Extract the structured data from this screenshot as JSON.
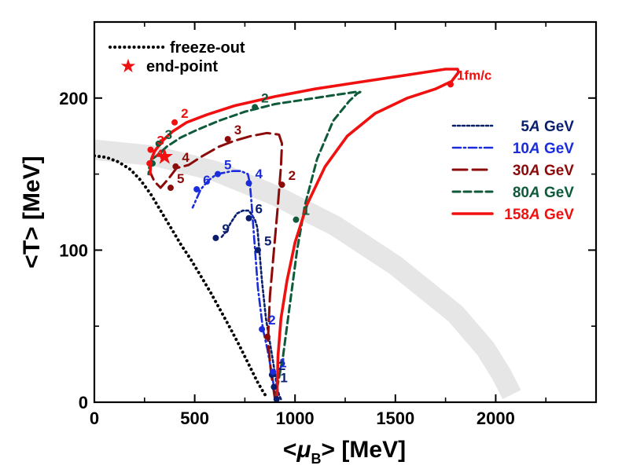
{
  "chart_data": {
    "type": "line",
    "title": "",
    "xlabel": "<μB> [MeV]",
    "xlabel_prefix": "<",
    "xlabel_symbol": "μ",
    "xlabel_sub": "B",
    "xlabel_suffix": "> [MeV]",
    "ylabel": "<T> [MeV]",
    "xlim": [
      0,
      2500
    ],
    "ylim": [
      0,
      250
    ],
    "x_ticks": [
      0,
      500,
      1000,
      1500,
      2000
    ],
    "x_tick_labels": [
      "0",
      "500",
      "1000",
      "1500",
      "2000"
    ],
    "y_ticks": [
      0,
      100,
      200
    ],
    "y_tick_labels": [
      "0",
      "100",
      "200"
    ],
    "grid": false,
    "legend_position": "right",
    "series": [
      {
        "name": "5A GeV",
        "label_num": "5",
        "label_unit": "A",
        "label_tail": " GeV",
        "color": "#0a1e6e",
        "style": "short-dot",
        "path": [
          [
            930,
            2
          ],
          [
            920,
            5
          ],
          [
            910,
            10
          ],
          [
            900,
            19
          ],
          [
            880,
            35
          ],
          [
            855,
            55
          ],
          [
            835,
            80
          ],
          [
            822,
            100
          ],
          [
            812,
            115
          ],
          [
            800,
            120
          ],
          [
            770,
            126
          ],
          [
            740,
            126
          ],
          [
            710,
            124
          ],
          [
            680,
            118
          ],
          [
            655,
            112
          ],
          [
            630,
            108
          ]
        ],
        "markers": [
          {
            "x": 908,
            "y": 2,
            "label": ""
          },
          {
            "x": 895,
            "y": 10,
            "label": "1"
          },
          {
            "x": 885,
            "y": 18,
            "label": "2"
          },
          {
            "x": 815,
            "y": 100,
            "label": "5"
          },
          {
            "x": 770,
            "y": 121,
            "label": "6"
          },
          {
            "x": 605,
            "y": 108,
            "label": "9"
          }
        ]
      },
      {
        "name": "10A GeV",
        "label_num": "10",
        "label_unit": "A",
        "label_tail": " GeV",
        "color": "#1a2cdc",
        "style": "dash-dot",
        "path": [
          [
            905,
            2
          ],
          [
            895,
            10
          ],
          [
            880,
            22
          ],
          [
            862,
            35
          ],
          [
            840,
            48
          ],
          [
            815,
            75
          ],
          [
            795,
            110
          ],
          [
            785,
            128
          ],
          [
            775,
            144
          ],
          [
            765,
            150
          ],
          [
            730,
            152
          ],
          [
            690,
            152
          ],
          [
            650,
            151
          ],
          [
            610,
            150
          ],
          [
            570,
            146
          ],
          [
            530,
            140
          ],
          [
            490,
            128
          ]
        ],
        "markers": [
          {
            "x": 890,
            "y": 20,
            "label": "1"
          },
          {
            "x": 835,
            "y": 48,
            "label": "2"
          },
          {
            "x": 770,
            "y": 144,
            "label": "4"
          },
          {
            "x": 615,
            "y": 150,
            "label": "5"
          },
          {
            "x": 510,
            "y": 140,
            "label": "6"
          }
        ]
      },
      {
        "name": "30A GeV",
        "label_num": "30",
        "label_unit": "A",
        "label_tail": " GeV",
        "color": "#8b0a0a",
        "style": "long-dash",
        "path": [
          [
            900,
            2
          ],
          [
            880,
            20
          ],
          [
            865,
            40
          ],
          [
            875,
            70
          ],
          [
            895,
            100
          ],
          [
            915,
            130
          ],
          [
            930,
            155
          ],
          [
            935,
            170
          ],
          [
            920,
            176
          ],
          [
            860,
            177
          ],
          [
            780,
            175
          ],
          [
            700,
            172
          ],
          [
            620,
            168
          ],
          [
            540,
            162
          ],
          [
            470,
            156
          ],
          [
            410,
            154
          ],
          [
            370,
            147
          ],
          [
            330,
            141
          ],
          [
            300,
            145
          ],
          [
            275,
            152
          ]
        ],
        "markers": [
          {
            "x": 862,
            "y": 43,
            "label": ""
          },
          {
            "x": 935,
            "y": 143,
            "label": "2"
          },
          {
            "x": 665,
            "y": 173,
            "label": "3"
          },
          {
            "x": 405,
            "y": 155,
            "label": "4"
          },
          {
            "x": 380,
            "y": 141,
            "label": "5"
          }
        ]
      },
      {
        "name": "80A GeV",
        "label_num": "80",
        "label_unit": "A",
        "label_tail": " GeV",
        "color": "#0e5a3a",
        "style": "dash",
        "path": [
          [
            900,
            2
          ],
          [
            940,
            30
          ],
          [
            980,
            70
          ],
          [
            1010,
            100
          ],
          [
            1050,
            130
          ],
          [
            1110,
            160
          ],
          [
            1190,
            185
          ],
          [
            1270,
            198
          ],
          [
            1310,
            203
          ],
          [
            1325,
            204
          ],
          [
            1300,
            204
          ],
          [
            1200,
            202
          ],
          [
            1050,
            199
          ],
          [
            900,
            196
          ],
          [
            750,
            191
          ],
          [
            620,
            185
          ],
          [
            510,
            179
          ],
          [
            430,
            174
          ],
          [
            360,
            168
          ],
          [
            320,
            163
          ],
          [
            290,
            160
          ],
          [
            275,
            156
          ],
          [
            270,
            150
          ]
        ],
        "markers": [
          {
            "x": 1005,
            "y": 120,
            "label": "1"
          },
          {
            "x": 800,
            "y": 194,
            "label": "2"
          },
          {
            "x": 320,
            "y": 170,
            "label": "3"
          },
          {
            "x": 290,
            "y": 157,
            "label": "4"
          }
        ]
      },
      {
        "name": "158A GeV",
        "label_num": "158",
        "label_unit": "A",
        "label_tail": " GeV",
        "color": "#f01010",
        "style": "solid",
        "path": [
          [
            910,
            2
          ],
          [
            915,
            30
          ],
          [
            930,
            55
          ],
          [
            960,
            80
          ],
          [
            1000,
            105
          ],
          [
            1060,
            130
          ],
          [
            1150,
            155
          ],
          [
            1260,
            175
          ],
          [
            1400,
            190
          ],
          [
            1560,
            200
          ],
          [
            1700,
            206
          ],
          [
            1780,
            211
          ],
          [
            1815,
            217
          ],
          [
            1810,
            219
          ],
          [
            1750,
            219
          ],
          [
            1650,
            217
          ],
          [
            1500,
            214
          ],
          [
            1300,
            210
          ],
          [
            1100,
            206
          ],
          [
            900,
            201
          ],
          [
            700,
            195
          ],
          [
            560,
            189
          ],
          [
            460,
            184
          ],
          [
            390,
            178
          ],
          [
            340,
            172
          ],
          [
            300,
            165
          ],
          [
            285,
            160
          ],
          [
            280,
            155
          ],
          [
            278,
            150
          ]
        ],
        "markers": [
          {
            "x": 1775,
            "y": 209,
            "label": "1fm/c"
          },
          {
            "x": 400,
            "y": 184,
            "label": "2"
          },
          {
            "x": 280,
            "y": 166,
            "label": "3"
          },
          {
            "x": 275,
            "y": 157,
            "label": "4"
          }
        ]
      },
      {
        "name": "freeze-out",
        "color": "#000000",
        "style": "dots",
        "path": [
          [
            0,
            162
          ],
          [
            60,
            161
          ],
          [
            120,
            158
          ],
          [
            180,
            153
          ],
          [
            230,
            146
          ],
          [
            280,
            137
          ],
          [
            330,
            126
          ],
          [
            380,
            115
          ],
          [
            430,
            104
          ],
          [
            480,
            94
          ],
          [
            530,
            83
          ],
          [
            580,
            72
          ],
          [
            630,
            60
          ],
          [
            680,
            48
          ],
          [
            720,
            38
          ],
          [
            750,
            30
          ],
          [
            780,
            22
          ],
          [
            810,
            14
          ],
          [
            840,
            7
          ],
          [
            860,
            3
          ]
        ],
        "markers": []
      }
    ],
    "end_point": {
      "name": "end-point",
      "x": 350,
      "y": 162,
      "color": "#f01010"
    },
    "phase_boundary_band": {
      "color": "#e6e6e6",
      "path": [
        [
          0,
          166
        ],
        [
          300,
          162
        ],
        [
          600,
          152
        ],
        [
          900,
          136
        ],
        [
          1200,
          116
        ],
        [
          1500,
          90
        ],
        [
          1800,
          58
        ],
        [
          1950,
          35
        ],
        [
          2030,
          18
        ],
        [
          2080,
          5
        ]
      ]
    },
    "legend": {
      "freeze_out_label": "freeze-out",
      "end_point_label": "end-point",
      "energies": [
        "5A GeV",
        "10A GeV",
        "30A GeV",
        "80A GeV",
        "158A GeV"
      ]
    }
  }
}
